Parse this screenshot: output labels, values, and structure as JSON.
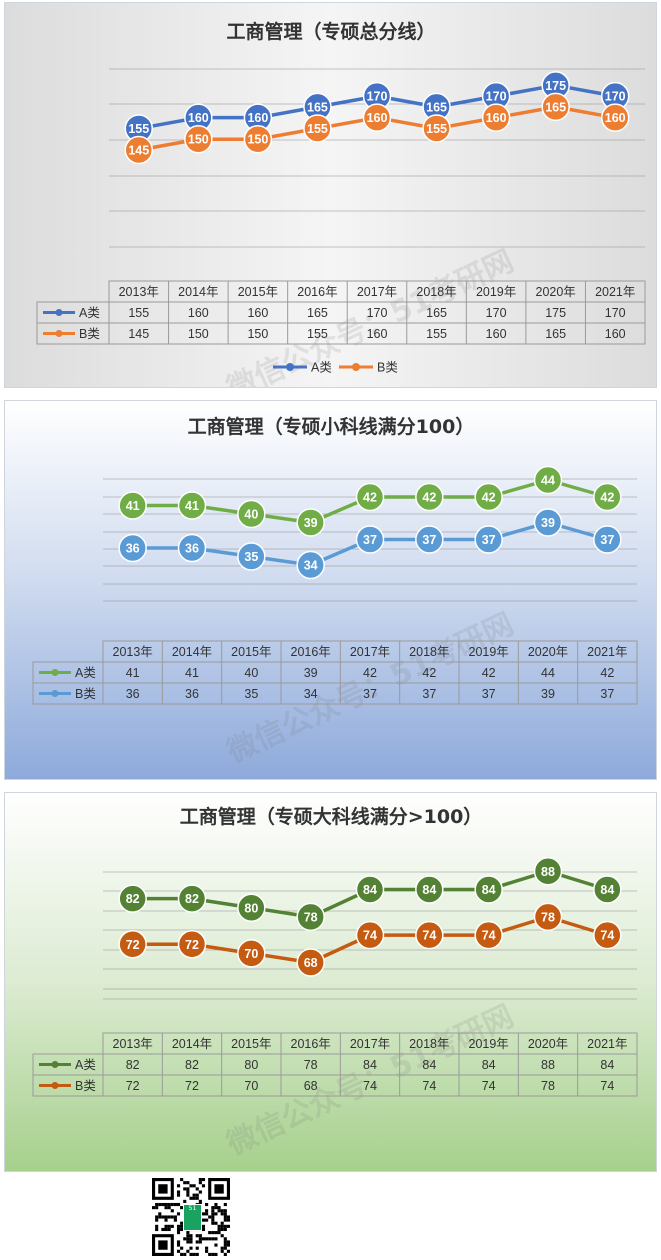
{
  "qr_code": {
    "center_text": "51"
  },
  "watermark": "微信公众号：51考研网",
  "chart_data": [
    {
      "type": "line",
      "title": "工商管理（专硕总分线）",
      "categories": [
        "2013年",
        "2014年",
        "2015年",
        "2016年",
        "2017年",
        "2018年",
        "2019年",
        "2020年",
        "2021年"
      ],
      "ylim": [
        100,
        190
      ],
      "grid": true,
      "legend": "bottom",
      "series": [
        {
          "name": "A类",
          "color": "#4472c4",
          "values": [
            155,
            160,
            160,
            165,
            170,
            165,
            170,
            175,
            170
          ]
        },
        {
          "name": "B类",
          "color": "#ed7d31",
          "values": [
            145,
            150,
            150,
            155,
            160,
            155,
            160,
            165,
            160
          ]
        }
      ]
    },
    {
      "type": "line",
      "title": "工商管理（专硕小科线满分100）",
      "categories": [
        "2013年",
        "2014年",
        "2015年",
        "2016年",
        "2017年",
        "2018年",
        "2019年",
        "2020年",
        "2021年"
      ],
      "ylim": [
        30,
        46
      ],
      "grid": true,
      "legend": "table",
      "series": [
        {
          "name": "A类",
          "color": "#70ad47",
          "values": [
            41,
            41,
            40,
            39,
            42,
            42,
            42,
            44,
            42
          ]
        },
        {
          "name": "B类",
          "color": "#5b9bd5",
          "values": [
            36,
            36,
            35,
            34,
            37,
            37,
            37,
            39,
            37
          ]
        }
      ]
    },
    {
      "type": "line",
      "title": "工商管理（专硕大科线满分>100）",
      "categories": [
        "2013年",
        "2014年",
        "2015年",
        "2016年",
        "2017年",
        "2018年",
        "2019年",
        "2020年",
        "2021年"
      ],
      "ylim": [
        60,
        92
      ],
      "grid": true,
      "legend": "table",
      "series": [
        {
          "name": "A类",
          "color": "#548235",
          "values": [
            82,
            82,
            80,
            78,
            84,
            84,
            84,
            88,
            84
          ]
        },
        {
          "name": "B类",
          "color": "#c55a11",
          "values": [
            72,
            72,
            70,
            68,
            74,
            74,
            74,
            78,
            74
          ]
        }
      ]
    }
  ]
}
